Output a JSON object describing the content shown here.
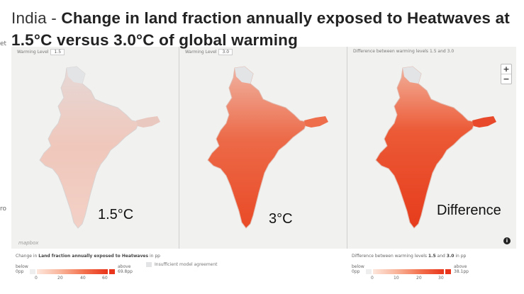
{
  "title": {
    "lead": "India - ",
    "main": "Change in land fraction annually exposed to Heatwaves at 1.5°C versus 3.0°C of global warming"
  },
  "left_cut_labels": [
    "et",
    "ro"
  ],
  "panels": [
    {
      "label": "Warming Level",
      "level": "1.5",
      "caption": "1.5°C"
    },
    {
      "label": "Warming Level",
      "level": "3.0",
      "caption": "3°C"
    },
    {
      "label": "Difference between warming levels 1.5 and 3.0",
      "level": "",
      "caption": "Difference"
    }
  ],
  "map_controls": {
    "zoom_in": "+",
    "zoom_out": "−",
    "info": "i",
    "logo": "mapbox"
  },
  "legend_left": {
    "title_prefix": "Change in",
    "title_bold": "Land fraction annually exposed to Heatwaves",
    "title_suffix": "in pp",
    "below_label": "below",
    "below_value": "0pp",
    "above_label": "above",
    "above_value": "69.8pp",
    "ticks": [
      "0",
      "20",
      "40",
      "60"
    ],
    "insufficient": "Insufficient model agreement"
  },
  "legend_right": {
    "title_prefix": "Difference between warming levels",
    "title_bold_a": "1.5",
    "title_mid": "and",
    "title_bold_b": "3.0",
    "title_suffix": "in pp",
    "below_label": "below",
    "below_value": "0pp",
    "above_label": "above",
    "above_value": "38.1pp",
    "ticks": [
      "0",
      "10",
      "20",
      "30"
    ]
  },
  "colors": {
    "low": "#fde6dc",
    "mid": "#f3714e",
    "high": "#e8351b",
    "insufficient": "#e2e4e6",
    "background": "#f1f1ef"
  }
}
